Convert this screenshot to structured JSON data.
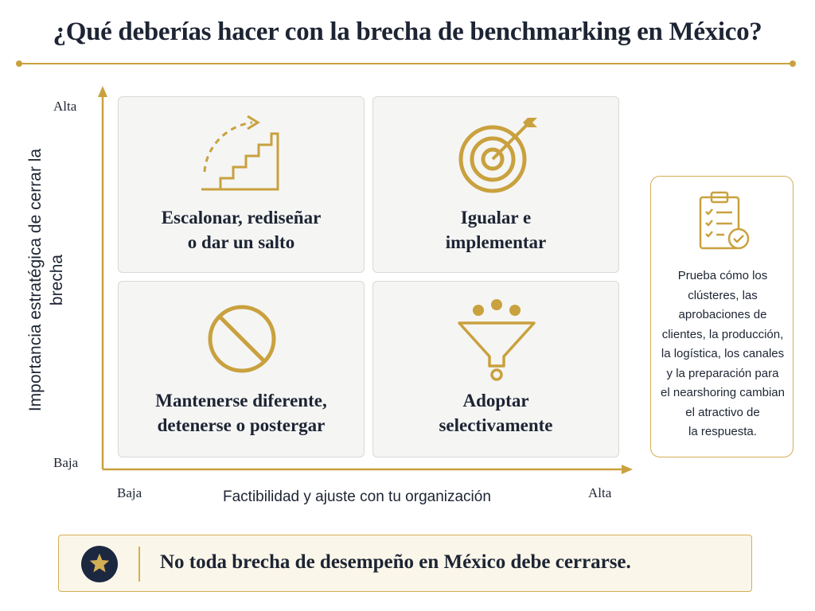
{
  "title": "¿Qué deberías hacer con la brecha de benchmarking en México?",
  "axes": {
    "y_title": "Importancia estratégica de cerrar la brecha",
    "y_high": "Alta",
    "y_low": "Baja",
    "x_title": "Factibilidad y ajuste con tu organización",
    "x_low": "Baja",
    "x_high": "Alta"
  },
  "quadrants": {
    "top_left": {
      "icon": "stairs-arrow-icon",
      "line1": "Escalonar, rediseñar",
      "line2": "o dar un salto"
    },
    "top_right": {
      "icon": "target-arrow-icon",
      "line1": "Igualar e",
      "line2": "implementar"
    },
    "bottom_left": {
      "icon": "prohibited-icon",
      "line1": "Mantenerse diferente,",
      "line2": "detenerse o postergar"
    },
    "bottom_right": {
      "icon": "funnel-icon",
      "line1": "Adoptar",
      "line2": "selectivamente"
    }
  },
  "side_note": {
    "icon": "clipboard-check-icon",
    "lines": [
      "Prueba cómo los",
      "clústeres, las",
      "aprobaciones de",
      "clientes, la producción,",
      "la logística, los canales",
      "y la preparación para",
      "el nearshoring cambian",
      "el atractivo de",
      "la respuesta."
    ]
  },
  "banner": {
    "icon": "star-icon",
    "text": "No toda brecha de desempeño en México debe cerrarse."
  },
  "colors": {
    "gold": "#c9a13e",
    "navy": "#1c2840",
    "text": "#1d2433",
    "quad_bg": "#f5f5f4"
  }
}
